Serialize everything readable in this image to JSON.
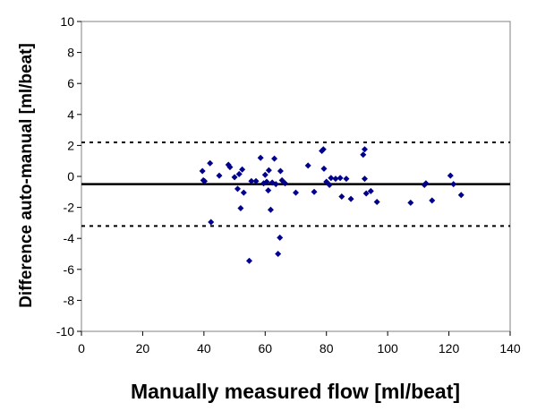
{
  "chart_data": {
    "type": "scatter",
    "title": "",
    "xlabel": "Manually measured flow [ml/beat]",
    "ylabel": "Difference auto-manual [ml/beat]",
    "xlim": [
      0,
      140
    ],
    "ylim": [
      -10,
      10
    ],
    "xticks": [
      0,
      20,
      40,
      60,
      80,
      100,
      120,
      140
    ],
    "yticks": [
      -10,
      -8,
      -6,
      -4,
      -2,
      0,
      2,
      4,
      6,
      8,
      10
    ],
    "grid": false,
    "legend": "none",
    "marker": "diamond",
    "marker_color": "#00008B",
    "reference_lines": [
      {
        "kind": "mean",
        "y": -0.5,
        "style": "solid"
      },
      {
        "kind": "upper-limit",
        "y": 2.2,
        "style": "dashed"
      },
      {
        "kind": "lower-limit",
        "y": -3.2,
        "style": "dashed"
      }
    ],
    "points": [
      [
        39.5,
        0.35
      ],
      [
        39.8,
        -0.25
      ],
      [
        40.2,
        -0.3
      ],
      [
        42,
        0.85
      ],
      [
        42.3,
        -2.95
      ],
      [
        45,
        0.05
      ],
      [
        48,
        0.75
      ],
      [
        48.5,
        0.6
      ],
      [
        50,
        -0.05
      ],
      [
        51,
        -0.8
      ],
      [
        51.5,
        0.15
      ],
      [
        52,
        -2.05
      ],
      [
        52.5,
        0.45
      ],
      [
        53,
        -1.05
      ],
      [
        54.8,
        -5.45
      ],
      [
        55.5,
        -0.3
      ],
      [
        57,
        -0.3
      ],
      [
        58.5,
        1.2
      ],
      [
        59.5,
        -0.45
      ],
      [
        60,
        0.1
      ],
      [
        60.5,
        -0.35
      ],
      [
        61,
        -0.9
      ],
      [
        61.2,
        0.4
      ],
      [
        61.8,
        -2.15
      ],
      [
        62.3,
        -0.4
      ],
      [
        63,
        1.15
      ],
      [
        63.5,
        -0.5
      ],
      [
        64.2,
        -5.0
      ],
      [
        64.8,
        -3.95
      ],
      [
        65,
        0.35
      ],
      [
        65.5,
        -0.25
      ],
      [
        66.5,
        -0.45
      ],
      [
        70,
        -1.05
      ],
      [
        74,
        0.7
      ],
      [
        76,
        -1.0
      ],
      [
        78.5,
        1.65
      ],
      [
        79,
        1.75
      ],
      [
        79.2,
        0.5
      ],
      [
        80,
        -0.35
      ],
      [
        81,
        -0.55
      ],
      [
        81.5,
        -0.1
      ],
      [
        83,
        -0.15
      ],
      [
        84.5,
        -0.1
      ],
      [
        85,
        -1.3
      ],
      [
        86.5,
        -0.15
      ],
      [
        88,
        -1.45
      ],
      [
        92,
        1.4
      ],
      [
        92.5,
        1.75
      ],
      [
        92.5,
        -0.15
      ],
      [
        93,
        -1.1
      ],
      [
        94.5,
        -0.95
      ],
      [
        96.5,
        -1.65
      ],
      [
        107.5,
        -1.7
      ],
      [
        112,
        -0.55
      ],
      [
        112.5,
        -0.45
      ],
      [
        114.5,
        -1.55
      ],
      [
        120.5,
        0.05
      ],
      [
        121.5,
        -0.5
      ],
      [
        124,
        -1.2
      ]
    ]
  }
}
